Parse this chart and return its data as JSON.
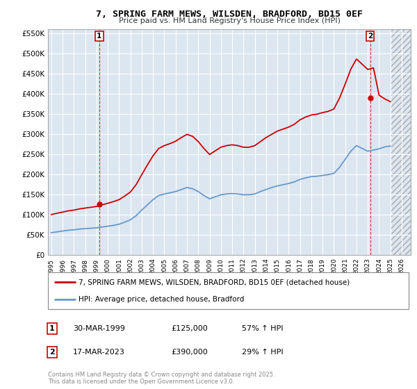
{
  "title": "7, SPRING FARM MEWS, WILSDEN, BRADFORD, BD15 0EF",
  "subtitle": "Price paid vs. HM Land Registry's House Price Index (HPI)",
  "ylim": [
    0,
    560000
  ],
  "yticks": [
    0,
    50000,
    100000,
    150000,
    200000,
    250000,
    300000,
    350000,
    400000,
    450000,
    500000,
    550000
  ],
  "ytick_labels": [
    "£0",
    "£50K",
    "£100K",
    "£150K",
    "£200K",
    "£250K",
    "£300K",
    "£350K",
    "£400K",
    "£450K",
    "£500K",
    "£550K"
  ],
  "xlim_start": 1994.7,
  "xlim_end": 2026.8,
  "transaction1_x": 1999.24,
  "transaction1_y": 125000,
  "transaction1_label": "1",
  "transaction1_date": "30-MAR-1999",
  "transaction1_price": "£125,000",
  "transaction1_hpi": "57% ↑ HPI",
  "transaction2_x": 2023.21,
  "transaction2_y": 390000,
  "transaction2_label": "2",
  "transaction2_date": "17-MAR-2023",
  "transaction2_price": "£390,000",
  "transaction2_hpi": "29% ↑ HPI",
  "line1_color": "#cc0000",
  "line2_color": "#6699cc",
  "line1_label": "7, SPRING FARM MEWS, WILSDEN, BRADFORD, BD15 0EF (detached house)",
  "line2_label": "HPI: Average price, detached house, Bradford",
  "plot_bg_color": "#dce6f1",
  "grid_color": "#ffffff",
  "footnote": "Contains HM Land Registry data © Crown copyright and database right 2025.\nThis data is licensed under the Open Government Licence v3.0.",
  "hpi_years": [
    1995,
    1995.5,
    1996,
    1996.5,
    1997,
    1997.5,
    1998,
    1998.5,
    1999,
    1999.5,
    2000,
    2000.5,
    2001,
    2001.5,
    2002,
    2002.5,
    2003,
    2003.5,
    2004,
    2004.5,
    2005,
    2005.5,
    2006,
    2006.5,
    2007,
    2007.5,
    2008,
    2008.5,
    2009,
    2009.5,
    2010,
    2010.5,
    2011,
    2011.5,
    2012,
    2012.5,
    2013,
    2013.5,
    2014,
    2014.5,
    2015,
    2015.5,
    2016,
    2016.5,
    2017,
    2017.5,
    2018,
    2018.5,
    2019,
    2019.5,
    2020,
    2020.5,
    2021,
    2021.5,
    2022,
    2022.5,
    2023,
    2023.5,
    2024,
    2024.5,
    2025
  ],
  "hpi_values": [
    55000,
    57000,
    59000,
    61000,
    62000,
    64000,
    65000,
    66000,
    67000,
    69000,
    71000,
    73000,
    76000,
    81000,
    87000,
    97000,
    111000,
    124000,
    137000,
    147000,
    151000,
    154000,
    157000,
    162000,
    167000,
    164000,
    157000,
    147000,
    139000,
    144000,
    149000,
    151000,
    152000,
    151000,
    149000,
    149000,
    151000,
    157000,
    162000,
    167000,
    171000,
    174000,
    177000,
    181000,
    187000,
    191000,
    194000,
    195000,
    197000,
    199000,
    202000,
    217000,
    237000,
    257000,
    271000,
    264000,
    257000,
    260000,
    263000,
    268000,
    270000
  ],
  "prop_years": [
    1995,
    1995.5,
    1996,
    1996.5,
    1997,
    1997.5,
    1998,
    1998.5,
    1999,
    1999.5,
    2000,
    2000.5,
    2001,
    2001.5,
    2002,
    2002.5,
    2003,
    2003.5,
    2004,
    2004.5,
    2005,
    2005.5,
    2006,
    2006.5,
    2007,
    2007.5,
    2008,
    2008.5,
    2009,
    2009.5,
    2010,
    2010.5,
    2011,
    2011.5,
    2012,
    2012.5,
    2013,
    2013.5,
    2014,
    2014.5,
    2015,
    2015.5,
    2016,
    2016.5,
    2017,
    2017.5,
    2018,
    2018.5,
    2019,
    2019.5,
    2020,
    2020.5,
    2021,
    2021.5,
    2022,
    2022.5,
    2023,
    2023.5,
    2024,
    2024.5,
    2025
  ],
  "prop_values": [
    100000,
    103000,
    106000,
    109000,
    111000,
    114000,
    116000,
    118000,
    120000,
    124000,
    128000,
    132000,
    137000,
    146000,
    156000,
    174000,
    199000,
    223000,
    246000,
    264000,
    271000,
    276000,
    282000,
    291000,
    299000,
    294000,
    281000,
    264000,
    249000,
    258000,
    267000,
    271000,
    273000,
    271000,
    267000,
    267000,
    271000,
    281000,
    291000,
    299000,
    307000,
    312000,
    317000,
    324000,
    335000,
    342000,
    347000,
    349000,
    353000,
    356000,
    362000,
    389000,
    424000,
    461000,
    486000,
    473000,
    460000,
    464000,
    396000,
    387000,
    380000
  ]
}
